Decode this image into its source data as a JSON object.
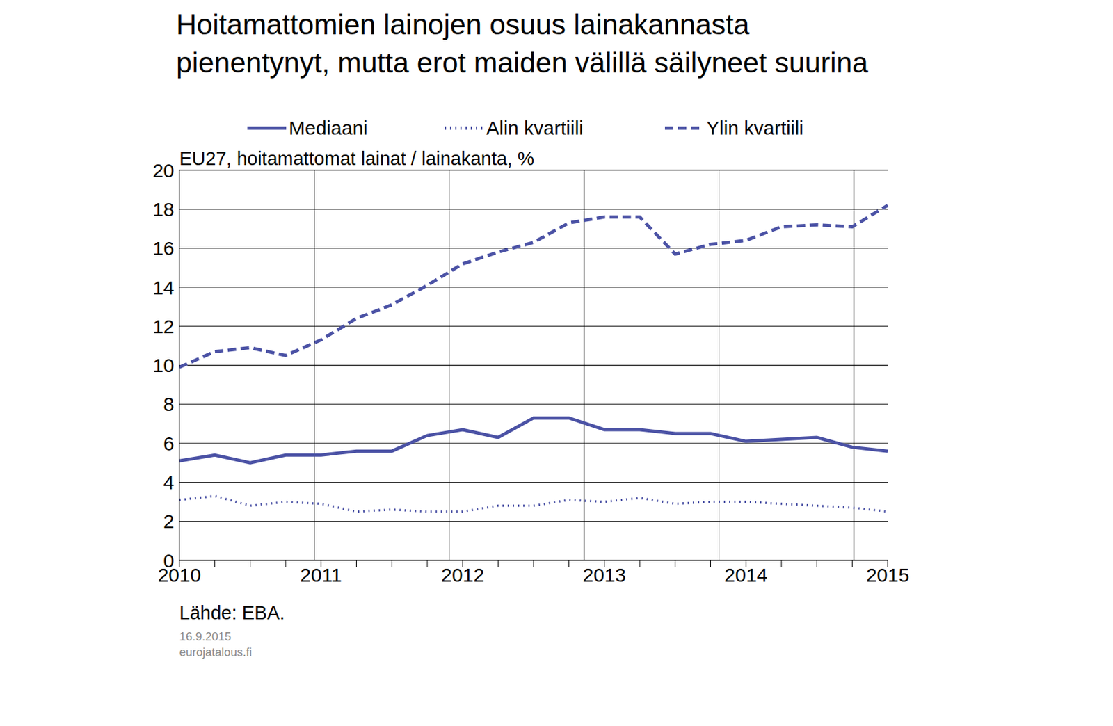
{
  "chart_data": {
    "type": "line",
    "title": "Hoitamattomien lainojen osuus lainakannasta pienentynyt, mutta erot maiden välillä säilyneet suurina",
    "subtitle": "EU27, hoitamattomat lainat / lainakanta, %",
    "source": "Lähde: EBA.",
    "date": "16.9.2015",
    "website": "eurojatalous.fi",
    "categories": [
      "2010",
      null,
      null,
      null,
      "2011",
      null,
      null,
      null,
      "2012",
      null,
      null,
      null,
      "2013",
      null,
      null,
      null,
      "2014",
      null,
      null,
      null,
      "2015"
    ],
    "series": [
      {
        "name": "Mediaani",
        "color": "#4b52a5",
        "line_style": "solid",
        "values": [
          5.1,
          5.4,
          5.0,
          5.4,
          5.4,
          5.6,
          5.6,
          6.4,
          6.7,
          6.3,
          7.3,
          7.3,
          6.7,
          6.7,
          6.5,
          6.5,
          6.1,
          6.2,
          6.3,
          5.8,
          5.6
        ]
      },
      {
        "name": "Alin kvartiili",
        "color": "#4b52a5",
        "line_style": "dotted",
        "values": [
          3.1,
          3.3,
          2.8,
          3.0,
          2.9,
          2.5,
          2.6,
          2.5,
          2.5,
          2.8,
          2.8,
          3.1,
          3.0,
          3.2,
          2.9,
          3.0,
          3.0,
          2.9,
          2.8,
          2.7,
          2.5
        ]
      },
      {
        "name": "Ylin kvartiili",
        "color": "#4b52a5",
        "line_style": "dashed",
        "values": [
          9.9,
          10.7,
          10.9,
          10.5,
          11.3,
          12.4,
          13.1,
          14.1,
          15.2,
          15.8,
          16.3,
          17.3,
          17.6,
          17.6,
          15.7,
          16.2,
          16.4,
          17.1,
          17.2,
          17.1,
          18.2
        ]
      }
    ],
    "ylim": [
      0,
      20
    ],
    "yticks": [
      0,
      2,
      4,
      6,
      8,
      10,
      12,
      14,
      16,
      18,
      20
    ],
    "grid": true,
    "legend": "top"
  }
}
